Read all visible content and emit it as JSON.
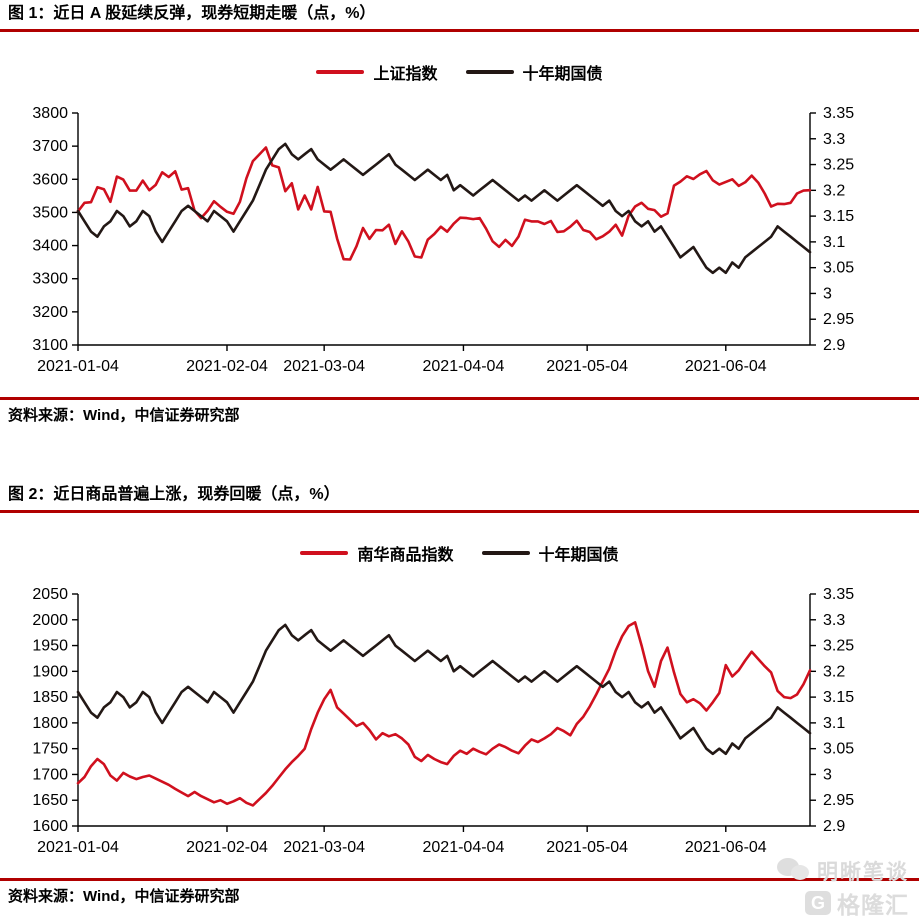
{
  "figure1": {
    "title": "图 1：近日 A 股延续反弹，现券短期走暖（点，%）",
    "source": "资料来源：Wind，中信证券研究部"
  },
  "figure2": {
    "title": "图 2：近日商品普遍上涨，现券回暖（点，%）",
    "source": "资料来源：Wind，中信证券研究部"
  },
  "watermark": {
    "wechat_account": "明晰笔谈",
    "platform": "格隆汇",
    "platform_logo_letter": "G"
  },
  "colors": {
    "accent_red_rule": "#b00000",
    "series_red": "#d0101e",
    "series_black": "#231815",
    "watermark_gray": "#dadada"
  },
  "chart_data": [
    {
      "type": "line",
      "title": "近日 A 股延续反弹，现券短期走暖（点，%）",
      "grid": false,
      "legend_position": "top-center",
      "x_tick_labels": [
        "2021-01-04",
        "2021-02-04",
        "2021-03-04",
        "2021-04-04",
        "2021-05-04",
        "2021-06-04"
      ],
      "x_tick_indices": [
        0,
        23,
        38,
        59.5,
        78.6,
        100
      ],
      "left_axis": {
        "min": 3100,
        "max": 3800,
        "tick_labels": [
          "3800",
          "3700",
          "3600",
          "3500",
          "3400",
          "3300",
          "3200",
          "3100"
        ]
      },
      "right_axis": {
        "min": 2.9,
        "max": 3.35,
        "tick_labels": [
          "3.35",
          "3.3",
          "3.25",
          "3.2",
          "3.15",
          "3.1",
          "3.05",
          "3",
          "2.95",
          "2.9"
        ]
      },
      "series": [
        {
          "name": "上证指数",
          "axis": "left",
          "color": "#d0101e",
          "values": [
            3503,
            3529,
            3531,
            3576,
            3570,
            3532,
            3608,
            3599,
            3566,
            3566,
            3596,
            3567,
            3583,
            3621,
            3607,
            3624,
            3569,
            3573,
            3505,
            3483,
            3505,
            3534,
            3517,
            3502,
            3496,
            3532,
            3603,
            3655,
            3675,
            3696,
            3642,
            3636,
            3564,
            3588,
            3509,
            3551,
            3509,
            3577,
            3503,
            3502,
            3421,
            3359,
            3358,
            3398,
            3453,
            3420,
            3447,
            3446,
            3463,
            3405,
            3443,
            3412,
            3367,
            3364,
            3418,
            3435,
            3457,
            3442,
            3466,
            3484,
            3483,
            3480,
            3483,
            3451,
            3413,
            3396,
            3417,
            3399,
            3427,
            3478,
            3473,
            3473,
            3465,
            3474,
            3441,
            3443,
            3457,
            3475,
            3447,
            3441,
            3419,
            3428,
            3442,
            3463,
            3430,
            3490,
            3518,
            3529,
            3511,
            3507,
            3487,
            3497,
            3581,
            3593,
            3609,
            3601,
            3615,
            3625,
            3597,
            3584,
            3592,
            3600,
            3580,
            3591,
            3611,
            3590,
            3557,
            3518,
            3526,
            3525,
            3529,
            3557,
            3566,
            3567
          ]
        },
        {
          "name": "十年期国债",
          "axis": "right",
          "color": "#231815",
          "values": [
            3.16,
            3.14,
            3.12,
            3.11,
            3.13,
            3.14,
            3.16,
            3.15,
            3.13,
            3.14,
            3.16,
            3.15,
            3.12,
            3.1,
            3.12,
            3.14,
            3.16,
            3.17,
            3.16,
            3.15,
            3.14,
            3.16,
            3.15,
            3.14,
            3.12,
            3.14,
            3.16,
            3.18,
            3.21,
            3.24,
            3.26,
            3.28,
            3.29,
            3.27,
            3.26,
            3.27,
            3.28,
            3.26,
            3.25,
            3.24,
            3.25,
            3.26,
            3.25,
            3.24,
            3.23,
            3.24,
            3.25,
            3.26,
            3.27,
            3.25,
            3.24,
            3.23,
            3.22,
            3.23,
            3.24,
            3.23,
            3.22,
            3.23,
            3.2,
            3.21,
            3.2,
            3.19,
            3.2,
            3.21,
            3.22,
            3.21,
            3.2,
            3.19,
            3.18,
            3.19,
            3.18,
            3.19,
            3.2,
            3.19,
            3.18,
            3.19,
            3.2,
            3.21,
            3.2,
            3.19,
            3.18,
            3.17,
            3.18,
            3.16,
            3.15,
            3.16,
            3.14,
            3.13,
            3.14,
            3.12,
            3.13,
            3.11,
            3.09,
            3.07,
            3.08,
            3.09,
            3.07,
            3.05,
            3.04,
            3.05,
            3.04,
            3.06,
            3.05,
            3.07,
            3.08,
            3.09,
            3.1,
            3.11,
            3.13,
            3.12,
            3.11,
            3.1,
            3.09,
            3.08
          ]
        }
      ]
    },
    {
      "type": "line",
      "title": "近日商品普遍上涨，现券回暖（点，%）",
      "grid": false,
      "legend_position": "top-center",
      "x_tick_labels": [
        "2021-01-04",
        "2021-02-04",
        "2021-03-04",
        "2021-04-04",
        "2021-05-04",
        "2021-06-04"
      ],
      "x_tick_indices": [
        0,
        23,
        38,
        59.5,
        78.6,
        100
      ],
      "left_axis": {
        "min": 1600,
        "max": 2050,
        "tick_labels": [
          "2050",
          "2000",
          "1950",
          "1900",
          "1850",
          "1800",
          "1750",
          "1700",
          "1650",
          "1600"
        ]
      },
      "right_axis": {
        "min": 2.9,
        "max": 3.35,
        "tick_labels": [
          "3.35",
          "3.3",
          "3.25",
          "3.2",
          "3.15",
          "3.1",
          "3.05",
          "3",
          "2.95",
          "2.9"
        ]
      },
      "series": [
        {
          "name": "南华商品指数",
          "axis": "left",
          "color": "#d0101e",
          "values": [
            1683,
            1695,
            1716,
            1730,
            1720,
            1698,
            1688,
            1703,
            1696,
            1691,
            1695,
            1698,
            1692,
            1686,
            1680,
            1672,
            1665,
            1658,
            1666,
            1658,
            1652,
            1646,
            1650,
            1643,
            1648,
            1654,
            1645,
            1640,
            1652,
            1664,
            1678,
            1694,
            1710,
            1724,
            1736,
            1750,
            1788,
            1820,
            1846,
            1864,
            1830,
            1818,
            1806,
            1794,
            1800,
            1786,
            1768,
            1780,
            1774,
            1778,
            1770,
            1758,
            1734,
            1726,
            1738,
            1730,
            1724,
            1720,
            1736,
            1746,
            1740,
            1750,
            1744,
            1739,
            1750,
            1758,
            1753,
            1746,
            1741,
            1756,
            1768,
            1763,
            1770,
            1778,
            1790,
            1784,
            1776,
            1798,
            1812,
            1832,
            1855,
            1880,
            1905,
            1940,
            1968,
            1988,
            1995,
            1950,
            1900,
            1870,
            1920,
            1946,
            1898,
            1856,
            1840,
            1846,
            1838,
            1824,
            1840,
            1858,
            1912,
            1890,
            1902,
            1921,
            1938,
            1924,
            1910,
            1898,
            1862,
            1850,
            1848,
            1855,
            1875,
            1902
          ]
        },
        {
          "name": "十年期国债",
          "axis": "right",
          "color": "#231815",
          "values": [
            3.16,
            3.14,
            3.12,
            3.11,
            3.13,
            3.14,
            3.16,
            3.15,
            3.13,
            3.14,
            3.16,
            3.15,
            3.12,
            3.1,
            3.12,
            3.14,
            3.16,
            3.17,
            3.16,
            3.15,
            3.14,
            3.16,
            3.15,
            3.14,
            3.12,
            3.14,
            3.16,
            3.18,
            3.21,
            3.24,
            3.26,
            3.28,
            3.29,
            3.27,
            3.26,
            3.27,
            3.28,
            3.26,
            3.25,
            3.24,
            3.25,
            3.26,
            3.25,
            3.24,
            3.23,
            3.24,
            3.25,
            3.26,
            3.27,
            3.25,
            3.24,
            3.23,
            3.22,
            3.23,
            3.24,
            3.23,
            3.22,
            3.23,
            3.2,
            3.21,
            3.2,
            3.19,
            3.2,
            3.21,
            3.22,
            3.21,
            3.2,
            3.19,
            3.18,
            3.19,
            3.18,
            3.19,
            3.2,
            3.19,
            3.18,
            3.19,
            3.2,
            3.21,
            3.2,
            3.19,
            3.18,
            3.17,
            3.18,
            3.16,
            3.15,
            3.16,
            3.14,
            3.13,
            3.14,
            3.12,
            3.13,
            3.11,
            3.09,
            3.07,
            3.08,
            3.09,
            3.07,
            3.05,
            3.04,
            3.05,
            3.04,
            3.06,
            3.05,
            3.07,
            3.08,
            3.09,
            3.1,
            3.11,
            3.13,
            3.12,
            3.11,
            3.1,
            3.09,
            3.08
          ]
        }
      ]
    }
  ]
}
